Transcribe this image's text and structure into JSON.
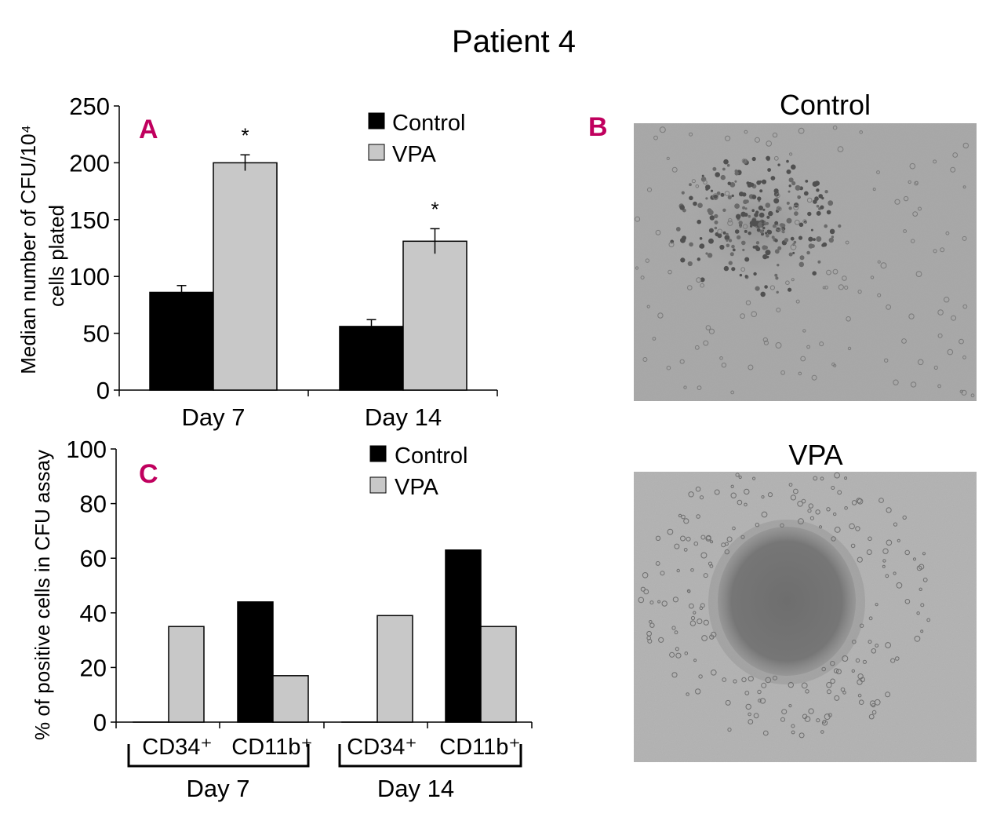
{
  "figure": {
    "title": "Patient 4",
    "panel_labels": {
      "a": "A",
      "b": "B",
      "c": "C"
    },
    "colors": {
      "control": "#000000",
      "vpa": "#c8c8c8",
      "panel_letter": "#c0005e",
      "micrograph_bg": "#a9a9a9"
    }
  },
  "chart_data": [
    {
      "type": "bar",
      "panel": "A",
      "title": "",
      "ylabel_line1": "Median number of CFU/10⁴",
      "ylabel_line2": "cells plated",
      "xlabel": "",
      "categories": [
        "Day 7",
        "Day 14"
      ],
      "ylim": [
        0,
        250
      ],
      "yticks": [
        0,
        50,
        100,
        150,
        200,
        250
      ],
      "series": [
        {
          "name": "Control",
          "color": "#000000",
          "values": [
            86,
            56
          ],
          "errors": [
            6,
            6
          ]
        },
        {
          "name": "VPA",
          "color": "#c8c8c8",
          "values": [
            200,
            131
          ],
          "errors": [
            7,
            11
          ]
        }
      ],
      "significance": [
        {
          "category": "Day 7",
          "series": "VPA",
          "text": "*"
        },
        {
          "category": "Day 14",
          "series": "VPA",
          "text": "*"
        }
      ],
      "legend": {
        "position": "top-right",
        "entries": [
          "Control",
          "VPA"
        ]
      },
      "grid": false
    },
    {
      "type": "bar",
      "panel": "C",
      "title": "",
      "ylabel": "% of positive cells in CFU assay",
      "xlabel": "",
      "groups": [
        {
          "label": "Day 7",
          "subcategories": [
            "CD34⁺",
            "CD11b⁺"
          ]
        },
        {
          "label": "Day 14",
          "subcategories": [
            "CD34⁺",
            "CD11b⁺"
          ]
        }
      ],
      "ylim": [
        0,
        100
      ],
      "yticks": [
        0,
        20,
        40,
        60,
        80,
        100
      ],
      "series": [
        {
          "name": "Control",
          "color": "#000000",
          "values": [
            0,
            44,
            0,
            63
          ]
        },
        {
          "name": "VPA",
          "color": "#c8c8c8",
          "values": [
            35,
            17,
            39,
            35
          ]
        }
      ],
      "legend": {
        "position": "top-right",
        "entries": [
          "Control",
          "VPA"
        ]
      },
      "grid": false
    }
  ],
  "micrographs": [
    {
      "label": "Control",
      "kind": "scattered-colony"
    },
    {
      "label": "VPA",
      "kind": "dense-colony"
    }
  ]
}
